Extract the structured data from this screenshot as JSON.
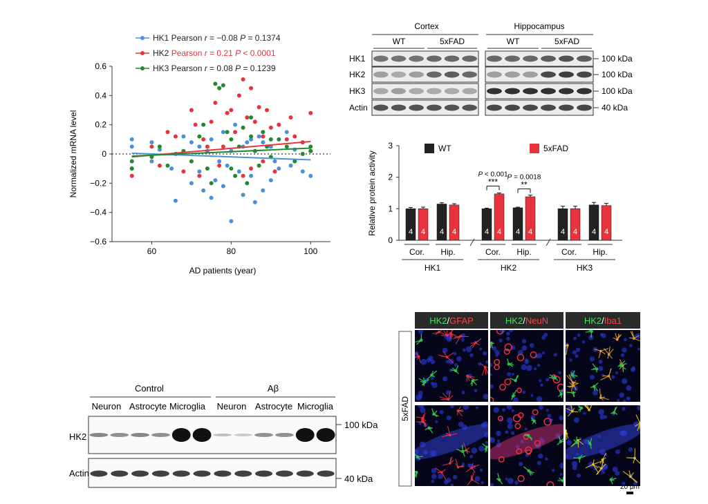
{
  "panel_scatter": {
    "legend": [
      {
        "name": "HK1",
        "label": "HK1 Pearson ",
        "r_label": "r",
        "r_text": " = −0.08 ",
        "p_label": "P",
        "p_text": " = 0.1374",
        "color": "#4a90d9"
      },
      {
        "name": "HK2",
        "label": "HK2 ",
        "red_label": "Pearson ",
        "r_label": "r",
        "r_text": " = 0.21 ",
        "p_label": "P",
        "p_text": " < 0.0001",
        "color": "#e8323c"
      },
      {
        "name": "HK3",
        "label": "HK3 Pearson ",
        "r_label": "r",
        "r_text": " = 0.08 ",
        "p_label": "P",
        "p_text": " = 0.1239",
        "color": "#1f8a2e"
      }
    ]
  },
  "chart_data": [
    {
      "type": "scatter",
      "xlabel": "AD patients (year)",
      "ylabel": "Normalized mRNA level",
      "xlim": [
        50,
        105
      ],
      "ylim": [
        -0.6,
        0.6
      ],
      "x_ticks": [
        60,
        80,
        100
      ],
      "y_ticks": [
        -0.6,
        -0.4,
        -0.2,
        0,
        0.2,
        0.4,
        0.6
      ],
      "y_tick_labels": [
        "−0.6",
        "−0.4",
        "−0.2",
        "0",
        "0.2",
        "0.4",
        "0.6"
      ],
      "reference_line_y": 0,
      "series": [
        {
          "name": "HK1",
          "color": "#4a90d9",
          "points": [
            [
              55,
              0.1
            ],
            [
              55,
              0.05
            ],
            [
              60,
              0.08
            ],
            [
              60,
              -0.05
            ],
            [
              62,
              0.03
            ],
            [
              65,
              -0.1
            ],
            [
              66,
              -0.32
            ],
            [
              68,
              0.12
            ],
            [
              70,
              -0.2
            ],
            [
              72,
              0.05
            ],
            [
              73,
              -0.25
            ],
            [
              75,
              0.1
            ],
            [
              75,
              -0.3
            ],
            [
              76,
              -0.18
            ],
            [
              78,
              0.15
            ],
            [
              78,
              -0.22
            ],
            [
              79,
              -0.08
            ],
            [
              80,
              0.02
            ],
            [
              80,
              -0.46
            ],
            [
              81,
              0.2
            ],
            [
              82,
              -0.12
            ],
            [
              83,
              -0.28
            ],
            [
              84,
              0.08
            ],
            [
              85,
              -0.15
            ],
            [
              86,
              -0.33
            ],
            [
              87,
              0.12
            ],
            [
              88,
              -0.25
            ],
            [
              90,
              0.05
            ],
            [
              90,
              -0.18
            ],
            [
              92,
              -0.1
            ],
            [
              94,
              0.15
            ],
            [
              95,
              -0.08
            ],
            [
              98,
              -0.12
            ],
            [
              100,
              -0.15
            ],
            [
              100,
              0.02
            ],
            [
              70,
              0.08
            ],
            [
              72,
              -0.12
            ],
            [
              74,
              0.02
            ],
            [
              77,
              -0.05
            ],
            [
              83,
              0.05
            ],
            [
              85,
              0.1
            ],
            [
              88,
              0.08
            ],
            [
              91,
              -0.05
            ],
            [
              96,
              0.03
            ]
          ],
          "trend": [
            [
              55,
              0.005
            ],
            [
              100,
              -0.04
            ]
          ]
        },
        {
          "name": "HK2",
          "color": "#e8323c",
          "points": [
            [
              55,
              -0.1
            ],
            [
              55,
              -0.15
            ],
            [
              60,
              0.05
            ],
            [
              62,
              -0.08
            ],
            [
              64,
              0.15
            ],
            [
              66,
              0.12
            ],
            [
              68,
              -0.12
            ],
            [
              70,
              0.3
            ],
            [
              71,
              0.2
            ],
            [
              73,
              0.1
            ],
            [
              75,
              0.22
            ],
            [
              76,
              0.35
            ],
            [
              78,
              0.05
            ],
            [
              79,
              0.28
            ],
            [
              80,
              0.3
            ],
            [
              81,
              0.15
            ],
            [
              82,
              0.4
            ],
            [
              83,
              0.51
            ],
            [
              84,
              0.25
            ],
            [
              85,
              -0.1
            ],
            [
              86,
              0.22
            ],
            [
              87,
              0.32
            ],
            [
              88,
              0.12
            ],
            [
              89,
              0.3
            ],
            [
              90,
              0.18
            ],
            [
              92,
              0.2
            ],
            [
              94,
              0.1
            ],
            [
              95,
              0.25
            ],
            [
              96,
              0.12
            ],
            [
              98,
              0.08
            ],
            [
              100,
              0.28
            ],
            [
              100,
              0.02
            ],
            [
              72,
              -0.15
            ],
            [
              74,
              0.05
            ],
            [
              77,
              -0.08
            ],
            [
              83,
              -0.15
            ],
            [
              85,
              0.45
            ],
            [
              88,
              -0.05
            ],
            [
              91,
              -0.12
            ]
          ],
          "trend": [
            [
              55,
              -0.02
            ],
            [
              100,
              0.085
            ]
          ]
        },
        {
          "name": "HK3",
          "color": "#1f8a2e",
          "points": [
            [
              55,
              -0.05
            ],
            [
              55,
              -0.1
            ],
            [
              60,
              -0.02
            ],
            [
              62,
              0.05
            ],
            [
              64,
              -0.08
            ],
            [
              66,
              0.0
            ],
            [
              68,
              0.02
            ],
            [
              70,
              -0.05
            ],
            [
              72,
              0.12
            ],
            [
              74,
              -0.1
            ],
            [
              76,
              0.48
            ],
            [
              77,
              0.45
            ],
            [
              78,
              0.47
            ],
            [
              79,
              0.15
            ],
            [
              80,
              0.1
            ],
            [
              81,
              -0.15
            ],
            [
              82,
              0.05
            ],
            [
              83,
              0.18
            ],
            [
              84,
              -0.2
            ],
            [
              85,
              0.12
            ],
            [
              86,
              0.02
            ],
            [
              87,
              -0.08
            ],
            [
              88,
              0.15
            ],
            [
              89,
              0.05
            ],
            [
              90,
              -0.02
            ],
            [
              92,
              0.1
            ],
            [
              94,
              0.05
            ],
            [
              96,
              -0.05
            ],
            [
              98,
              0.0
            ],
            [
              100,
              0.05
            ],
            [
              100,
              0.02
            ],
            [
              73,
              0.2
            ],
            [
              75,
              -0.2
            ],
            [
              80,
              -0.1
            ],
            [
              85,
              0.25
            ],
            [
              90,
              0.1
            ]
          ],
          "trend": [
            [
              55,
              -0.015
            ],
            [
              100,
              0.04
            ]
          ]
        }
      ]
    },
    {
      "type": "bar",
      "ylabel": "Relative protein activity",
      "ylim": [
        0,
        3
      ],
      "y_ticks": [
        0,
        1,
        2,
        3
      ],
      "series": [
        {
          "name": "WT",
          "color": "#222222",
          "values": [
            1.0,
            1.15,
            1.0,
            1.03,
            1.0,
            1.12
          ]
        },
        {
          "name": "5xFAD",
          "color": "#e8323c",
          "values": [
            1.0,
            1.12,
            1.47,
            1.38,
            1.0,
            1.1
          ]
        }
      ],
      "errors": {
        "WT": [
          0.04,
          0.04,
          0.02,
          0.02,
          0.08,
          0.08
        ],
        "5xFAD": [
          0.05,
          0.04,
          0.03,
          0.05,
          0.08,
          0.07
        ]
      },
      "n_label": "4",
      "region_labels": [
        "Cor.",
        "Hip.",
        "Cor.",
        "Hip.",
        "Cor.",
        "Hip."
      ],
      "group_labels": [
        "HK1",
        "HK2",
        "HK3"
      ],
      "significance": [
        {
          "pair_index": 2,
          "p_label": "P",
          "p_text": " < 0.001",
          "stars": "***"
        },
        {
          "pair_index": 3,
          "p_label": "P",
          "p_text": " = 0.0018",
          "stars": "**"
        }
      ]
    }
  ],
  "blot_top": {
    "regions": [
      "Cortex",
      "Hippocampus"
    ],
    "groups": [
      "WT",
      "5xFAD",
      "WT",
      "5xFAD"
    ],
    "rows": [
      "HK1",
      "HK2",
      "HK3",
      "Actin"
    ],
    "sizes": [
      "100 kDa",
      "100 kDa",
      "100 kDa",
      "40 kDa"
    ]
  },
  "blot_bottom": {
    "conditions": [
      "Control",
      "Aβ"
    ],
    "cell_types": [
      "Neuron",
      "Astrocyte",
      "Microglia",
      "Neuron",
      "Astrocyte",
      "Microglia"
    ],
    "rows": [
      "HK2",
      "Actin"
    ],
    "sizes": [
      "100 kDa",
      "40 kDa"
    ]
  },
  "micrographs": {
    "headers": [
      {
        "a": "HK2",
        "sep": "/",
        "b": "GFAP"
      },
      {
        "a": "HK2",
        "sep": "/",
        "b": "NeuN"
      },
      {
        "a": "HK2",
        "sep": "/",
        "b": "Iba1"
      }
    ],
    "side_label": "5xFAD",
    "scale_bar": "20 μm",
    "colors": {
      "green": "#2fbf4a",
      "red": "#e8323c",
      "header_bg": "#2a2a2a",
      "header_green": "#4cd964",
      "header_red": "#ff4040"
    }
  }
}
